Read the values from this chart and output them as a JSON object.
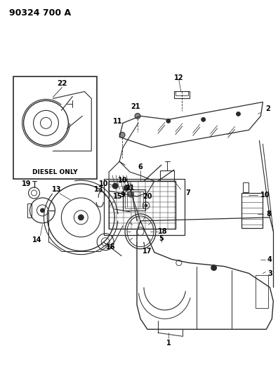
{
  "title": "90324 700 A",
  "background_color": "#ffffff",
  "line_color": "#2a2a2a",
  "text_color": "#000000",
  "title_fontsize": 9,
  "label_fontsize": 7,
  "fig_w": 3.96,
  "fig_h": 5.33,
  "dpi": 100
}
